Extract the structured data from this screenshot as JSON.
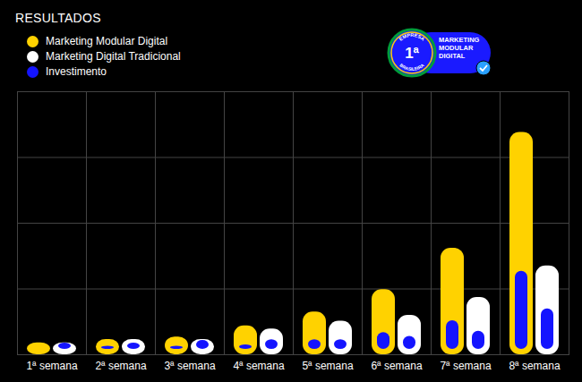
{
  "chart_data": {
    "type": "bar",
    "title": "RESULTADOS",
    "categories": [
      "1ª semana",
      "2ª semana",
      "3ª semana",
      "4ª semana",
      "5ª semana",
      "6ª semana",
      "7ª semana",
      "8ª semana"
    ],
    "series": [
      {
        "name": "Marketing Modular Digital",
        "color": "#ffd200",
        "values": [
          0.18,
          0.23,
          0.27,
          0.44,
          0.65,
          0.99,
          1.62,
          3.38
        ]
      },
      {
        "name": "Marketing Digital Tradicional",
        "color": "#ffffff",
        "values": [
          0.18,
          0.23,
          0.23,
          0.39,
          0.51,
          0.6,
          0.87,
          1.35
        ]
      },
      {
        "name": "Investimento",
        "color": "#1414ff",
        "values": [
          0.16,
          0.21,
          0.21,
          0.23,
          0.31,
          0.42,
          0.6,
          1.35
        ]
      },
      {
        "name": "Investimento",
        "color": "#1414ff",
        "values": [
          0.26,
          0.26,
          0.3,
          0.31,
          0.31,
          0.36,
          0.44,
          0.78
        ]
      }
    ],
    "ylim": [
      0,
      4
    ],
    "yticks": [
      0,
      1,
      2,
      3,
      4
    ],
    "grid": true,
    "tick_labels": "x",
    "legend": "top-left",
    "annotations": [
      "1ª",
      "EMPRESA",
      "BRASILEIRA",
      "MARKETING MODULAR DIGITAL"
    ]
  }
}
